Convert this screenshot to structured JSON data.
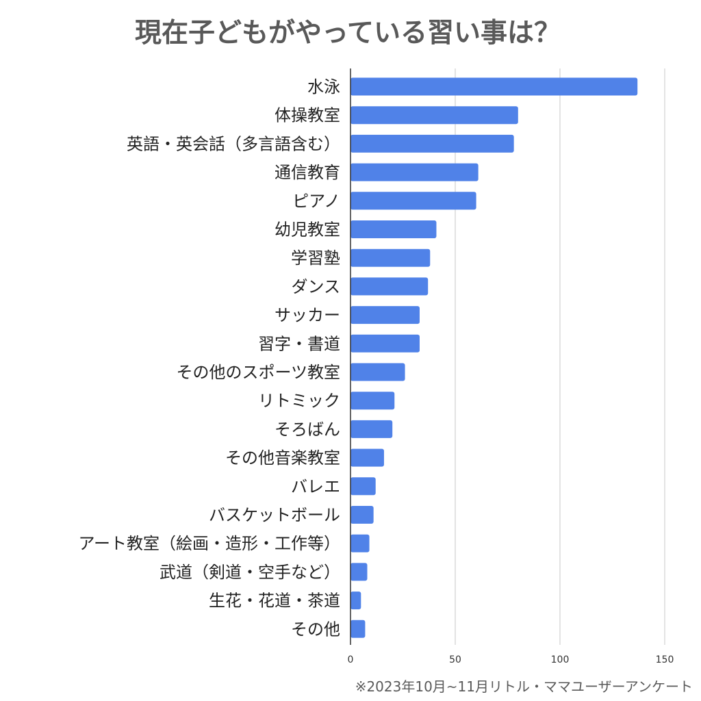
{
  "chart_data": {
    "type": "bar",
    "orientation": "horizontal",
    "title": "現在子どもがやっている習い事は？",
    "xlabel": "",
    "ylabel": "",
    "xlim": [
      0,
      150
    ],
    "xticks": [
      0,
      50,
      100,
      150
    ],
    "grid": true,
    "legend": "none",
    "categories": [
      "水泳",
      "体操教室",
      "英語・英会話（多言語含む）",
      "通信教育",
      "ピアノ",
      "幼児教室",
      "学習塾",
      "ダンス",
      "サッカー",
      "習字・書道",
      "その他のスポーツ教室",
      "リトミック",
      "そろばん",
      "その他音楽教室",
      "バレエ",
      "バスケットボール",
      "アート教室（絵画・造形・工作等）",
      "武道（剣道・空手など）",
      "生花・花道・茶道",
      "その他"
    ],
    "values": [
      137,
      80,
      78,
      61,
      60,
      41,
      38,
      37,
      33,
      33,
      26,
      21,
      20,
      16,
      12,
      11,
      9,
      8,
      5,
      7
    ]
  },
  "footnote": "※2023年10月~11月リトル・ママユーザーアンケート",
  "colors": {
    "bar": "#5082e8",
    "grid": "#d0d0d0",
    "axis": "#333333",
    "title": "#595959"
  }
}
